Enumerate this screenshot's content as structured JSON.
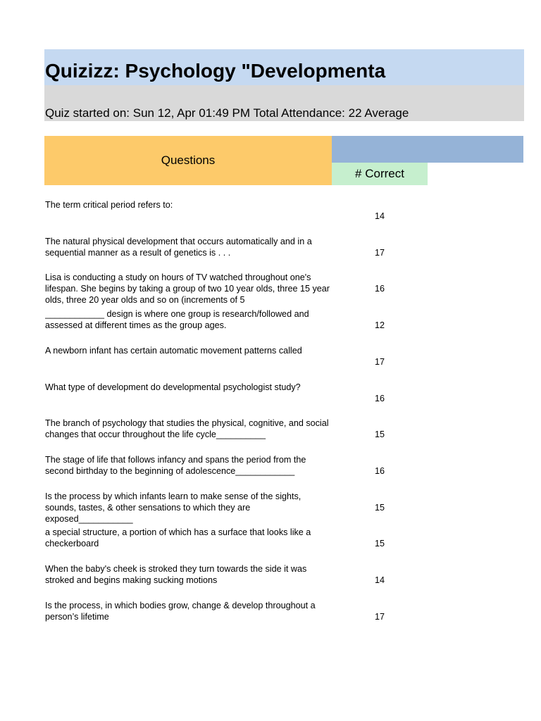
{
  "header": {
    "title": "Quizizz: Psychology \"Developmenta",
    "subtitle": "Quiz started on: Sun 12, Apr 01:49 PM Total Attendance: 22 Average"
  },
  "table": {
    "columns": [
      "Questions",
      "# Correct"
    ],
    "rows": [
      [
        "The term critical period refers to:",
        14
      ],
      [
        "The natural physical development that occurs automatically and in a sequential manner as a result of genetics is . . .",
        17
      ],
      [
        "Lisa is conducting a study on hours of TV watched throughout one's lifespan. She begins by taking a group of two 10 year olds, three 15 year olds, three 20 year olds and so on (increments of 5",
        16
      ],
      [
        "____________ design is where one group is research/followed and assessed at different times as the group ages.",
        12
      ],
      [
        "A newborn infant has certain automatic movement patterns called",
        17
      ],
      [
        "What type of development do developmental psychologist study?",
        16
      ],
      [
        "The branch of psychology that studies the physical, cognitive, and social changes that occur throughout the life cycle__________",
        15
      ],
      [
        "The stage of life that follows infancy and spans the period from the second birthday to the beginning of adolescence____________",
        16
      ],
      [
        "Is the process by which infants learn to make sense of the sights, sounds, tastes, & other sensations to which they are exposed___________",
        15
      ],
      [
        "a special structure, a portion of which has a surface that looks like a checkerboard",
        15
      ],
      [
        "When the baby's cheek is stroked they turn towards the side it was stroked and begins making sucking motions",
        14
      ],
      [
        "Is the process, in which bodies grow, change & develop throughout a person’s lifetime",
        17
      ]
    ]
  }
}
